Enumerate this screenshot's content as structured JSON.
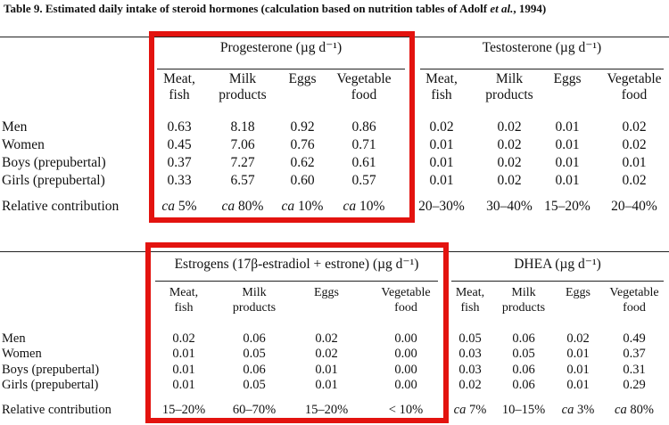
{
  "title": "Table 9. Estimated daily intake of steroid hormones (calculation based on nutrition tables of Adolf et al., 1994)",
  "title_parts": {
    "pre": "Table 9. Estimated daily intake of steroid hormones (calculation based on nutrition tables of Adolf ",
    "etal": "et al.",
    "post": ", 1994)"
  },
  "rows": [
    "Men",
    "Women",
    "Boys (prepubertal)",
    "Girls (prepubertal)"
  ],
  "contribution_label": "Relative contribution",
  "sources": {
    "meat": "Meat, fish",
    "milk": "Milk products",
    "eggs": "Eggs",
    "veg": "Vegetable food"
  },
  "header_lines": {
    "meat": [
      "Meat,",
      "fish"
    ],
    "milk": [
      "Milk",
      "products"
    ],
    "eggs": [
      "Eggs"
    ],
    "veg": [
      "Vegetable",
      "food"
    ]
  },
  "highlight_color": "#e3130f",
  "table1": {
    "groups": [
      {
        "title": "Progesterone (µg d⁻¹)",
        "values": [
          [
            "0.63",
            "8.18",
            "0.92",
            "0.86"
          ],
          [
            "0.45",
            "7.06",
            "0.76",
            "0.71"
          ],
          [
            "0.37",
            "7.27",
            "0.62",
            "0.61"
          ],
          [
            "0.33",
            "6.57",
            "0.60",
            "0.57"
          ]
        ],
        "contribution": [
          "ca 5%",
          "ca 80%",
          "ca 10%",
          "ca 10%"
        ],
        "highlighted": true
      },
      {
        "title": "Testosterone (µg d⁻¹)",
        "values": [
          [
            "0.02",
            "0.02",
            "0.01",
            "0.02"
          ],
          [
            "0.01",
            "0.02",
            "0.01",
            "0.02"
          ],
          [
            "0.01",
            "0.02",
            "0.01",
            "0.01"
          ],
          [
            "0.01",
            "0.02",
            "0.01",
            "0.02"
          ]
        ],
        "contribution": [
          "20–30%",
          "30–40%",
          "15–20%",
          "20–40%"
        ],
        "highlighted": false
      }
    ]
  },
  "table2": {
    "groups": [
      {
        "title": "Estrogens (17β-estradiol + estrone) (µg d⁻¹)",
        "values": [
          [
            "0.02",
            "0.06",
            "0.02",
            "0.00"
          ],
          [
            "0.01",
            "0.05",
            "0.02",
            "0.00"
          ],
          [
            "0.01",
            "0.06",
            "0.01",
            "0.00"
          ],
          [
            "0.01",
            "0.05",
            "0.01",
            "0.00"
          ]
        ],
        "contribution": [
          "15–20%",
          "60–70%",
          "15–20%",
          "< 10%"
        ],
        "highlighted": true
      },
      {
        "title": "DHEA (µg d⁻¹)",
        "values": [
          [
            "0.05",
            "0.06",
            "0.02",
            "0.49"
          ],
          [
            "0.03",
            "0.05",
            "0.01",
            "0.37"
          ],
          [
            "0.03",
            "0.06",
            "0.01",
            "0.31"
          ],
          [
            "0.02",
            "0.06",
            "0.01",
            "0.29"
          ]
        ],
        "contribution": [
          "ca 7%",
          "10–15%",
          "ca 3%",
          "ca 80%"
        ],
        "highlighted": false
      }
    ]
  }
}
